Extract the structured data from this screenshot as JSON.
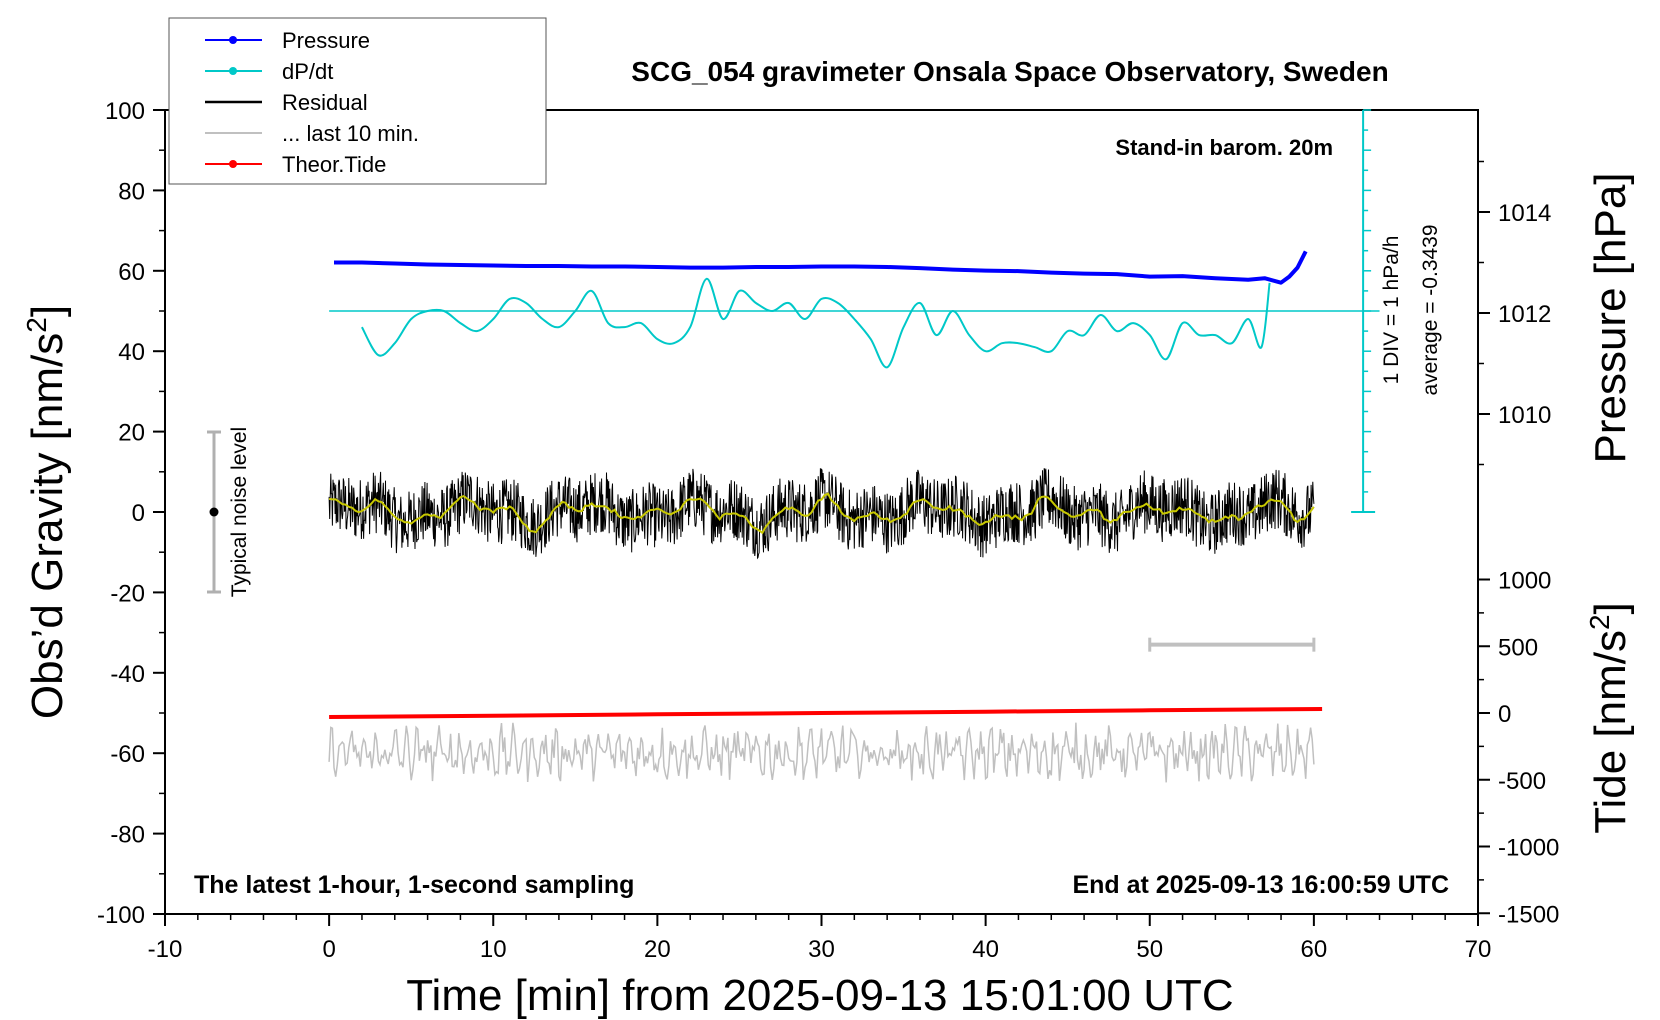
{
  "chart_data": {
    "type": "line",
    "title": "SCG_054 gravimeter Onsala Space Observatory, Sweden",
    "xlabel": "Time [min] from 2025-09-13 15:01:00 UTC",
    "ylabel_left": "Obs’d Gravity [nm/s",
    "ylabel_right_pressure": "Pressure [hPa]",
    "ylabel_right_tide": "Tide [nm/s",
    "label_sup": "2",
    "label_close": "]",
    "xlim": [
      -10,
      70
    ],
    "ylim_left": [
      -100,
      100
    ],
    "x_ticks": [
      "-10",
      "0",
      "10",
      "20",
      "30",
      "40",
      "50",
      "60",
      "70"
    ],
    "y_ticks_left": [
      "100",
      "80",
      "60",
      "40",
      "20",
      "0",
      "-20",
      "-40",
      "-60",
      "-80",
      "-100"
    ],
    "pressure_ticks": [
      "1014",
      "1012",
      "1010"
    ],
    "pressure_tick_values": [
      1014,
      1012,
      1010
    ],
    "tide_ticks": [
      "1000",
      "500",
      "0",
      "-500",
      "-1000",
      "-1500"
    ],
    "tide_tick_values": [
      1000,
      500,
      0,
      -500,
      -1000,
      -1500
    ],
    "annotations": {
      "barometer": "Stand-in barom. 20m",
      "sampling": "The latest 1-hour, 1-second sampling",
      "end_time": "End at 2025-09-13 16:00:59 UTC",
      "noise": "Typical noise level",
      "div_scale": "1 DIV = 1 hPa/h",
      "average": "average = -0.3439"
    },
    "legend": {
      "position": "top-left",
      "entries": [
        {
          "label": "Pressure",
          "color": "#0000ff",
          "marker": true
        },
        {
          "label": "dP/dt",
          "color": "#00c8c8",
          "marker": true
        },
        {
          "label": "Residual",
          "color": "#000000",
          "marker": false
        },
        {
          "label": "... last 10 min.",
          "color": "#c0c0c0",
          "marker": false
        },
        {
          "label": "Theor.Tide",
          "color": "#ff0000",
          "marker": true
        }
      ]
    },
    "colors": {
      "pressure": "#0000ff",
      "dpdt": "#00c8c8",
      "residual": "#000000",
      "residual_smooth": "#c8c800",
      "last10": "#c0c0c0",
      "tide": "#ff0000"
    },
    "series": [
      {
        "name": "Pressure",
        "unit": "hPa",
        "x": [
          0.3,
          2,
          4,
          6,
          8,
          10,
          12,
          14,
          16,
          18,
          20,
          22,
          24,
          26,
          28,
          30,
          32,
          34,
          36,
          38,
          40,
          42,
          44,
          46,
          48,
          50,
          52,
          54,
          56,
          57,
          58,
          58.5,
          59,
          59.5
        ],
        "y": [
          1013.0,
          1013.0,
          1012.98,
          1012.96,
          1012.95,
          1012.94,
          1012.93,
          1012.93,
          1012.92,
          1012.92,
          1012.91,
          1012.9,
          1012.9,
          1012.91,
          1012.91,
          1012.92,
          1012.92,
          1012.91,
          1012.89,
          1012.86,
          1012.84,
          1012.83,
          1012.8,
          1012.78,
          1012.77,
          1012.72,
          1012.73,
          1012.69,
          1012.66,
          1012.69,
          1012.6,
          1012.72,
          1012.9,
          1013.22
        ]
      },
      {
        "name": "dP/dt",
        "unit": "nm/s2 axis position",
        "x": [
          2,
          3,
          4,
          5,
          6,
          7,
          8,
          9,
          10,
          11,
          12,
          13,
          14,
          15,
          16,
          17,
          18,
          19,
          20,
          21,
          22,
          23,
          24,
          25,
          26,
          27,
          28,
          29,
          30,
          31,
          32,
          33,
          34,
          35,
          36,
          37,
          38,
          39,
          40,
          41,
          42,
          43,
          44,
          45,
          46,
          47,
          48,
          49,
          50,
          51,
          52,
          53,
          54,
          55,
          56,
          56.8,
          57.3
        ],
        "y": [
          46,
          39,
          42,
          48,
          50,
          50,
          47,
          45,
          48,
          53,
          52,
          48,
          46,
          50,
          55,
          47,
          46,
          47,
          43,
          42,
          46,
          58,
          48,
          55,
          52,
          50,
          52,
          48,
          53,
          52,
          48,
          43,
          36,
          46,
          52,
          44,
          50,
          44,
          40,
          42,
          42,
          41,
          40,
          45,
          44,
          49,
          45,
          47,
          44,
          38,
          47,
          44,
          44,
          42,
          48,
          41,
          57
        ]
      },
      {
        "name": "Theor.Tide",
        "unit": "nm/s2 (tide axis)",
        "x": [
          0,
          10,
          20,
          30,
          40,
          50,
          60.5
        ],
        "y": [
          -30,
          -20,
          -10,
          0,
          10,
          20,
          30
        ]
      }
    ],
    "residual_envelope": {
      "x_range": [
        0,
        60
      ],
      "amplitude": 8,
      "mean": 0,
      "color": "#000000"
    },
    "last10_range": {
      "x": [
        50,
        60
      ],
      "y": -33
    }
  }
}
